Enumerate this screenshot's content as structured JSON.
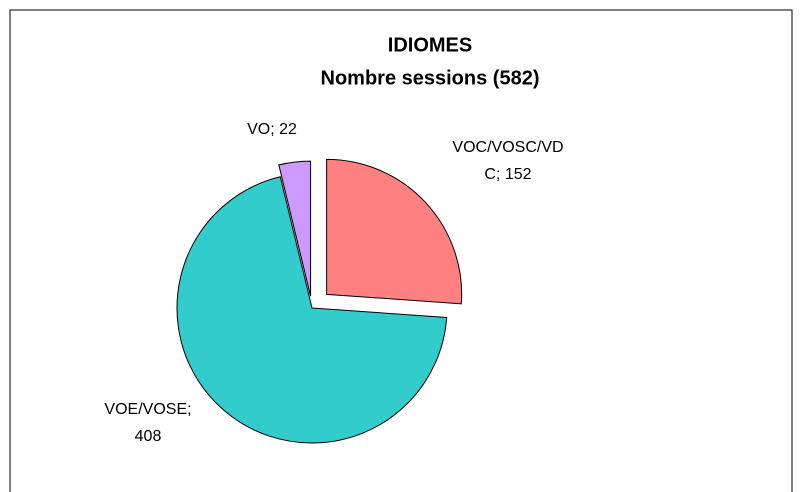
{
  "chart_data": {
    "type": "pie",
    "title": "IDIOMES",
    "subtitle": "Nombre sessions (582)",
    "values": [
      152,
      408,
      22
    ],
    "value_labels": [
      [
        "VOC/VOSC/VD",
        "C; 152"
      ],
      [
        "VOE/VOSE;",
        "408"
      ],
      [
        "VO; 22"
      ]
    ],
    "colors": [
      "#ff8080",
      "#33cccc",
      "#cc99ff"
    ]
  }
}
